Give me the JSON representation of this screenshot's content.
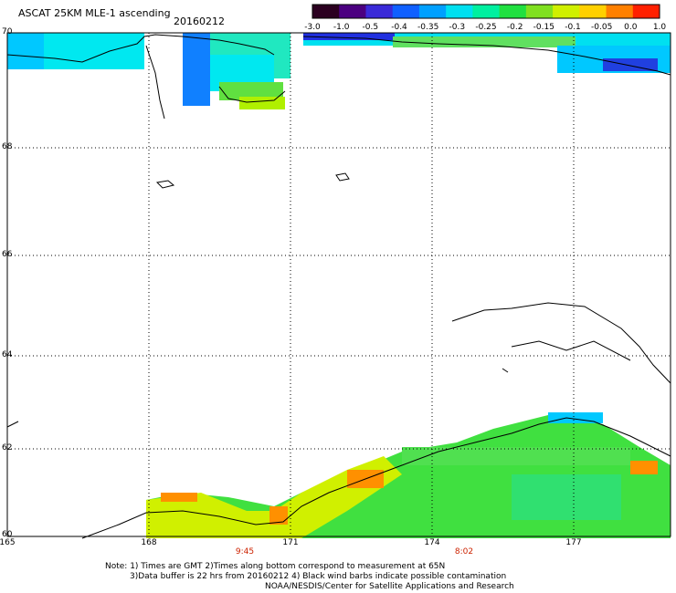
{
  "header": {
    "title": "ASCAT 25KM MLE-1 ascending",
    "date": "20160212"
  },
  "colorbar": {
    "labels": [
      "-3.0",
      "-1.0",
      "-0.5",
      "-0.4",
      "-0.35",
      "-0.3",
      "-0.25",
      "-0.2",
      "-0.15",
      "-0.1",
      "-0.05",
      "0.0",
      "1.0"
    ],
    "colors": [
      "#2b0020",
      "#4b0080",
      "#3a2ad8",
      "#1060ff",
      "#00a0ff",
      "#00e0f0",
      "#00f0a0",
      "#20e040",
      "#80e020",
      "#d0f000",
      "#ffd000",
      "#ff8000",
      "#ff2000"
    ]
  },
  "map": {
    "lat_labels": [
      "70",
      "68",
      "66",
      "64",
      "62",
      "60"
    ],
    "lon_labels": [
      "165",
      "168",
      "171",
      "174",
      "177"
    ],
    "pass_times": [
      "9:45",
      "8:02"
    ]
  },
  "footer": {
    "line1": "Note: 1) Times are GMT 2)Times along bottom correspond to measurement at 65N",
    "line2": "3)Data buffer is 22 hrs from 20160212 4) Black wind barbs indicate possible contamination",
    "line3": "NOAA/NESDIS/Center for Satellite Applications and Research"
  }
}
